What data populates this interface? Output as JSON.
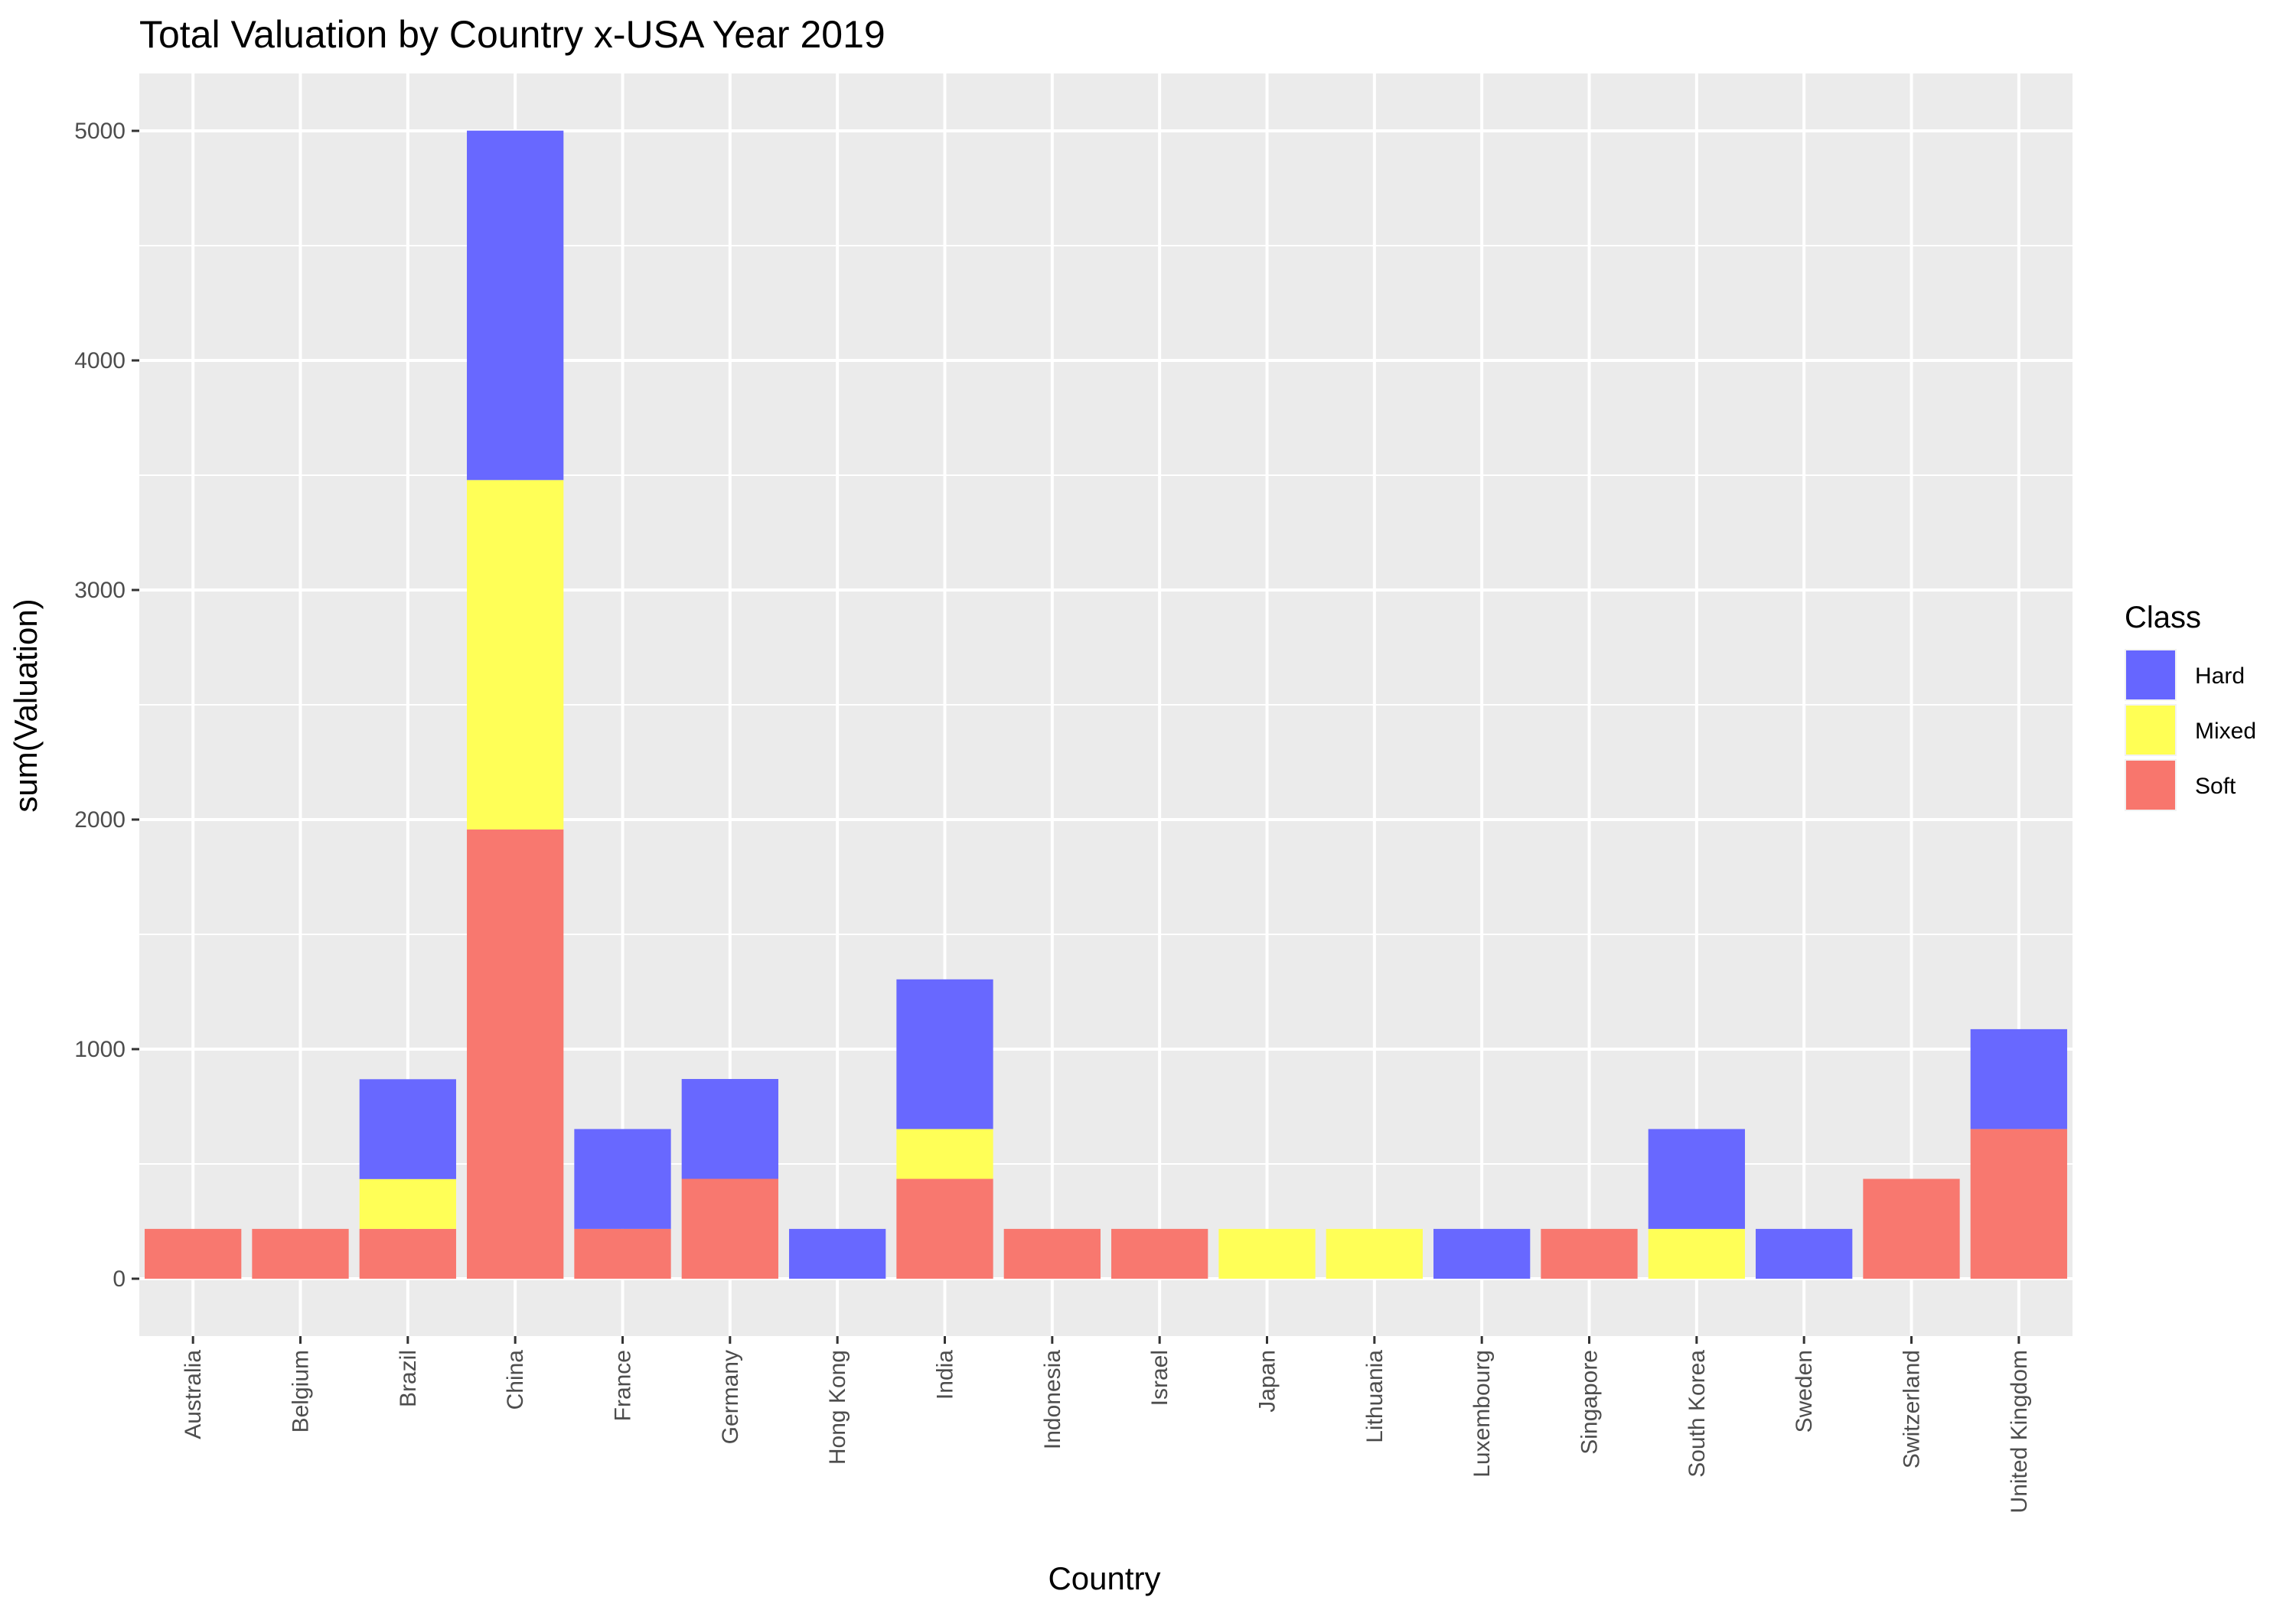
{
  "chart_data": {
    "type": "bar",
    "stacked": true,
    "title": "Total Valuation by Country x-USA Year 2019",
    "xlabel": "Country",
    "ylabel": "sum(Valuation)",
    "categories": [
      "Australia",
      "Belgium",
      "Brazil",
      "China",
      "France",
      "Germany",
      "Hong Kong",
      "India",
      "Indonesia",
      "Israel",
      "Japan",
      "Lithuania",
      "Luxembourg",
      "Singapore",
      "South Korea",
      "Sweden",
      "Switzerland",
      "United Kingdom"
    ],
    "series": [
      {
        "name": "Soft",
        "color": "#f8766d",
        "values": [
          217,
          217,
          217,
          1957,
          217,
          435,
          0,
          435,
          217,
          217,
          0,
          0,
          0,
          217,
          0,
          0,
          435,
          652
        ]
      },
      {
        "name": "Mixed",
        "color": "#ffff55",
        "values": [
          0,
          0,
          217,
          1522,
          0,
          0,
          0,
          217,
          0,
          0,
          217,
          217,
          0,
          0,
          217,
          0,
          0,
          0
        ]
      },
      {
        "name": "Hard",
        "color": "#6666ff",
        "values": [
          0,
          0,
          435,
          1522,
          435,
          435,
          217,
          652,
          0,
          0,
          0,
          0,
          217,
          0,
          435,
          217,
          0,
          435
        ]
      }
    ],
    "ylim": [
      -250,
      5250
    ],
    "yticks": [
      0,
      1000,
      2000,
      3000,
      4000,
      5000
    ],
    "grid": true,
    "legend": {
      "title": "Class",
      "position": "right",
      "items": [
        {
          "name": "Hard",
          "color": "#6666ff"
        },
        {
          "name": "Mixed",
          "color": "#ffff55"
        },
        {
          "name": "Soft",
          "color": "#f8766d"
        }
      ]
    },
    "panel_color": "#ebebeb",
    "grid_color": "#ffffff"
  }
}
